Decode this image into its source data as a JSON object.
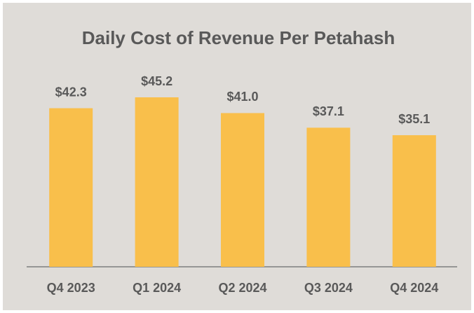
{
  "chart_data": {
    "type": "bar",
    "title": "Daily Cost of Revenue Per Petahash",
    "categories": [
      "Q4 2023",
      "Q1 2024",
      "Q2 2024",
      "Q3 2024",
      "Q4 2024"
    ],
    "values": [
      42.3,
      45.2,
      41.0,
      37.1,
      35.1
    ],
    "value_labels": [
      "$42.3",
      "$45.2",
      "$41.0",
      "$37.1",
      "$35.1"
    ],
    "color": "#f9bf4b"
  }
}
